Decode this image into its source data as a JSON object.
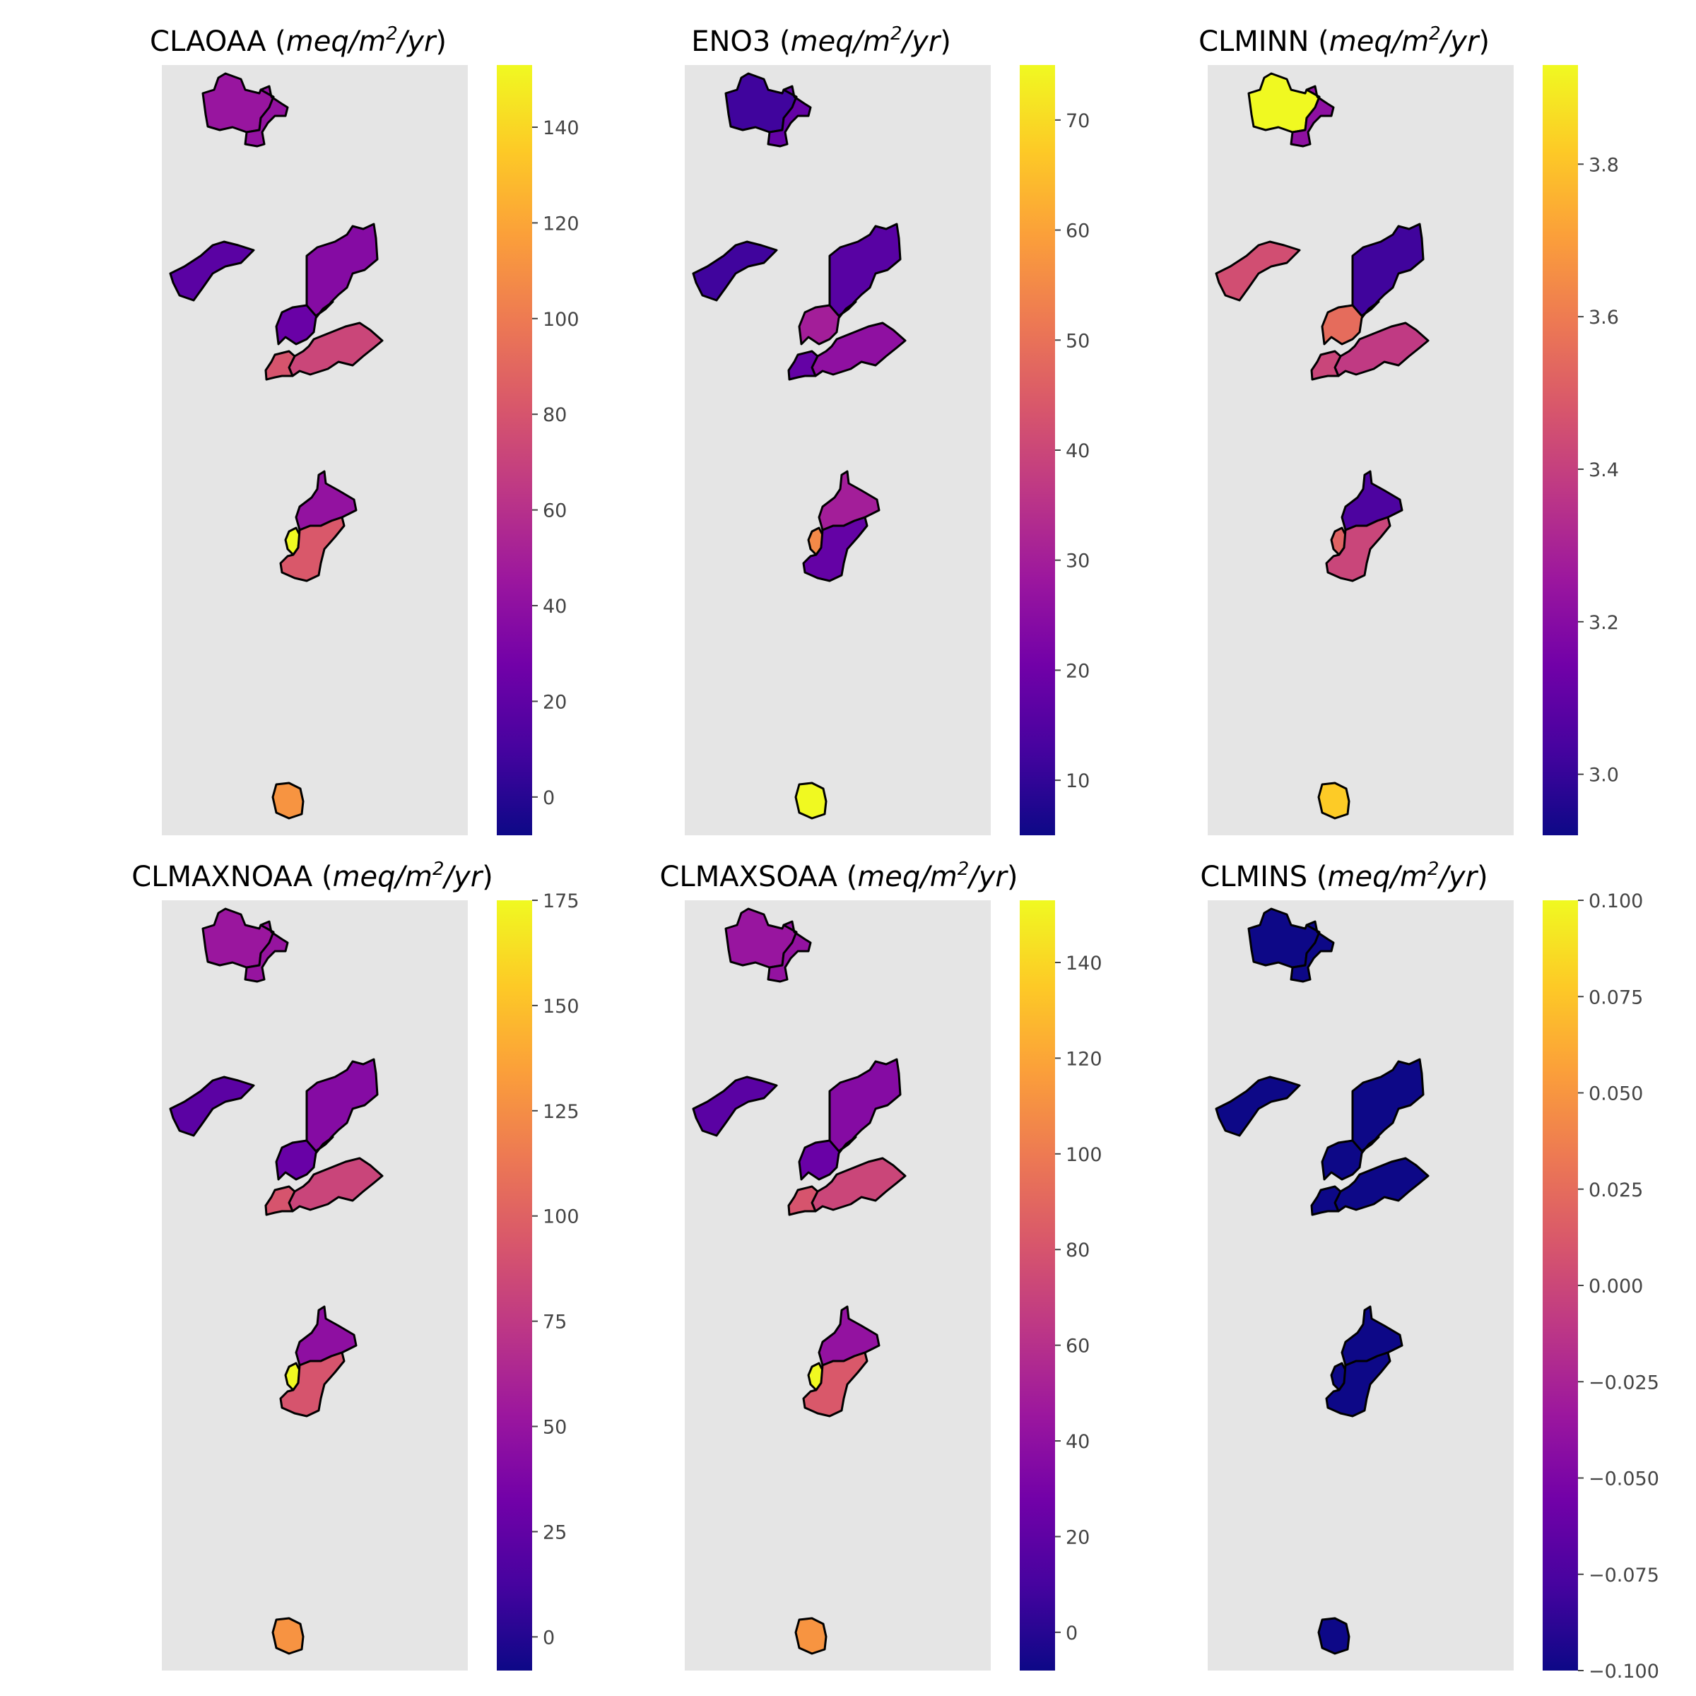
{
  "figure": {
    "colormap": "plasma",
    "colormap_stops": [
      "#0d0887",
      "#46039f",
      "#7201a8",
      "#9c179e",
      "#bd3786",
      "#d8576b",
      "#ed7953",
      "#fb9f3a",
      "#fdca26",
      "#f0f921"
    ],
    "map_background": "#e5e5e5",
    "boundary_color": "#000000",
    "panels": [
      {
        "title_name": "CLAOAA",
        "title_unit_prefix": "(",
        "title_unit_italic": "meq/m",
        "title_unit_sup": "2",
        "title_unit_italic2": "/yr",
        "title_unit_suffix": ")",
        "colorbar": {
          "min": -8,
          "max": 153,
          "ticks": [
            0,
            20,
            40,
            60,
            80,
            100,
            120,
            140
          ],
          "tick_labels": [
            "0",
            "20",
            "40",
            "60",
            "80",
            "100",
            "120",
            "140"
          ]
        },
        "region_values": {
          "north_west": 44,
          "north_east": 42,
          "west_group": 18,
          "northeast_large": 36,
          "east_small_group": 24,
          "east_large": 72,
          "east_southwest": 80,
          "central_north": 42,
          "central_yellow": 153,
          "central_south": 82,
          "island_south": 112
        }
      },
      {
        "title_name": "ENO3",
        "title_unit_prefix": "(",
        "title_unit_italic": "meq/m",
        "title_unit_sup": "2",
        "title_unit_italic2": "/yr",
        "title_unit_suffix": ")",
        "colorbar": {
          "min": 5,
          "max": 75,
          "ticks": [
            10,
            20,
            30,
            40,
            50,
            60,
            70
          ],
          "tick_labels": [
            "10",
            "20",
            "30",
            "40",
            "50",
            "60",
            "70"
          ]
        },
        "region_values": {
          "north_west": 12,
          "north_east": 18,
          "west_group": 12,
          "northeast_large": 16,
          "east_small_group": 30,
          "east_large": 26,
          "east_southwest": 18,
          "central_north": 30,
          "central_yellow": 55,
          "central_south": 18,
          "island_south": 75
        }
      },
      {
        "title_name": "CLMINN",
        "title_unit_prefix": "(",
        "title_unit_italic": "meq/m",
        "title_unit_sup": "2",
        "title_unit_italic2": "/yr",
        "title_unit_suffix": ")",
        "colorbar": {
          "min": 2.92,
          "max": 3.93,
          "ticks": [
            3.0,
            3.2,
            3.4,
            3.6,
            3.8
          ],
          "tick_labels": [
            "3.0",
            "3.2",
            "3.4",
            "3.6",
            "3.8"
          ]
        },
        "region_values": {
          "north_west": 3.93,
          "north_east": 3.22,
          "west_group": 3.45,
          "northeast_large": 3.02,
          "east_small_group": 3.55,
          "east_large": 3.38,
          "east_southwest": 3.42,
          "central_north": 3.05,
          "central_yellow": 3.52,
          "central_south": 3.42,
          "island_south": 3.82
        }
      },
      {
        "title_name": "CLMAXNOAA",
        "title_unit_prefix": "(",
        "title_unit_italic": "meq/m",
        "title_unit_sup": "2",
        "title_unit_italic2": "/yr",
        "title_unit_suffix": ")",
        "colorbar": {
          "min": -8,
          "max": 175,
          "ticks": [
            0,
            25,
            50,
            75,
            100,
            125,
            150,
            175
          ],
          "tick_labels": [
            "0",
            "25",
            "50",
            "75",
            "100",
            "125",
            "150",
            "175"
          ]
        },
        "region_values": {
          "north_west": 52,
          "north_east": 50,
          "west_group": 22,
          "northeast_large": 42,
          "east_small_group": 28,
          "east_large": 82,
          "east_southwest": 92,
          "central_north": 46,
          "central_yellow": 175,
          "central_south": 92,
          "island_south": 128
        }
      },
      {
        "title_name": "CLMAXSOAA",
        "title_unit_prefix": "(",
        "title_unit_italic": "meq/m",
        "title_unit_sup": "2",
        "title_unit_italic2": "/yr",
        "title_unit_suffix": ")",
        "colorbar": {
          "min": -8,
          "max": 153,
          "ticks": [
            0,
            20,
            40,
            60,
            80,
            100,
            120,
            140
          ],
          "tick_labels": [
            "0",
            "20",
            "40",
            "60",
            "80",
            "100",
            "120",
            "140"
          ]
        },
        "region_values": {
          "north_west": 44,
          "north_east": 42,
          "west_group": 18,
          "northeast_large": 36,
          "east_small_group": 24,
          "east_large": 72,
          "east_southwest": 80,
          "central_north": 42,
          "central_yellow": 153,
          "central_south": 82,
          "island_south": 112
        }
      },
      {
        "title_name": "CLMINS",
        "title_unit_prefix": "(",
        "title_unit_italic": "meq/m",
        "title_unit_sup": "2",
        "title_unit_italic2": "/yr",
        "title_unit_suffix": ")",
        "colorbar": {
          "min": -0.1,
          "max": 0.1,
          "ticks": [
            -0.1,
            -0.075,
            -0.05,
            -0.025,
            0.0,
            0.025,
            0.05,
            0.075,
            0.1
          ],
          "tick_labels": [
            "−0.100",
            "−0.075",
            "−0.050",
            "−0.025",
            "0.000",
            "0.025",
            "0.050",
            "0.075",
            "0.100"
          ]
        },
        "region_values": {
          "north_west": -0.1,
          "north_east": -0.1,
          "west_group": -0.1,
          "northeast_large": -0.1,
          "east_small_group": -0.1,
          "east_large": -0.1,
          "east_southwest": -0.1,
          "central_north": -0.1,
          "central_yellow": -0.1,
          "central_south": -0.1,
          "island_south": -0.1
        }
      }
    ]
  }
}
